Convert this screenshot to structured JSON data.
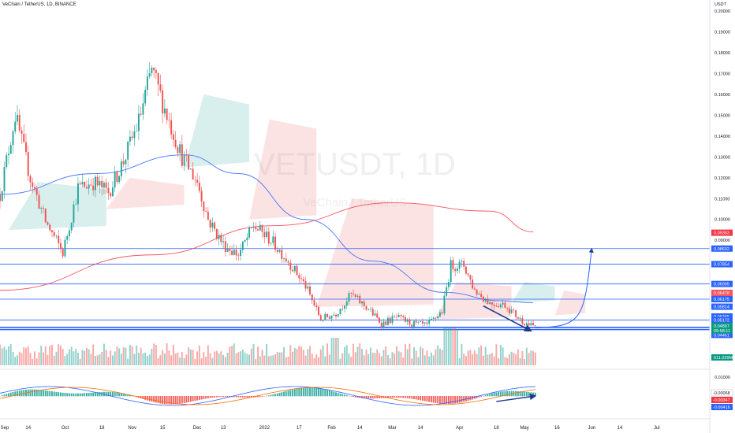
{
  "header": {
    "symbol_line": "VeChain / TetherUS, 1D, BINANCE"
  },
  "watermark": {
    "ticker": "VETUSDT, 1D",
    "name": "VeChain / TetherUS"
  },
  "price_axis": {
    "currency": "USDT",
    "labels": [
      "0.20000",
      "0.19000",
      "0.18000",
      "0.17000",
      "0.16000",
      "0.15000",
      "0.14000",
      "0.13000",
      "0.12000",
      "0.11000",
      "0.10000",
      "0.09000"
    ]
  },
  "price_tags": [
    {
      "text": "0.09363",
      "color": "#f23645"
    },
    {
      "text": "0.08602",
      "color": "#2962ff"
    },
    {
      "text": "0.07854",
      "color": "#2962ff"
    },
    {
      "text": "0.06905",
      "color": "#2962ff"
    },
    {
      "text": "0.06478",
      "color": "#f7525f"
    },
    {
      "text": "0.06175",
      "color": "#2962ff"
    },
    {
      "text": "0.05814",
      "color": "#2962ff"
    },
    {
      "text": "0.05345",
      "color": "#2962ff"
    },
    {
      "text": "0.05172",
      "color": "#2962ff"
    },
    {
      "text": "0.04822",
      "color": "#2962ff"
    },
    {
      "text": "0.04716",
      "color": "#2962ff"
    },
    {
      "text": "0.04461",
      "color": "#2962ff"
    }
  ],
  "last_price_tag": {
    "price": "0.04897",
    "countdown": "09:58:11",
    "color": "#089981"
  },
  "volume_tag": {
    "text": "611.029M",
    "color": "#089981"
  },
  "macd_axis": {
    "labels": [
      "0.01000"
    ]
  },
  "macd_tags": [
    {
      "text": "-0.00068",
      "color": "#ffffff"
    },
    {
      "text": "-0.00347",
      "color": "#f23645"
    },
    {
      "text": "-0.00416",
      "color": "#2962ff"
    }
  ],
  "time_axis": {
    "labels": [
      "Sep",
      "14",
      "Oct",
      "18",
      "Nov",
      "15",
      "Dec",
      "13",
      "2022",
      "17",
      "Feb",
      "14",
      "Mar",
      "14",
      "Apr",
      "18",
      "May",
      "16",
      "Jun",
      "14",
      "Jul"
    ]
  },
  "colors": {
    "up": "#26a69a",
    "down": "#ef5350",
    "ma_blue": "#2962ff",
    "ma_red": "#f23645",
    "hline": "#2962ff",
    "annot": "#1e3a8a"
  },
  "chart_data": {
    "type": "candlestick",
    "title": "VeChain / TetherUS, 1D, BINANCE",
    "x_range": [
      "2021-09-01",
      "2022-07-20"
    ],
    "ylim": [
      0.044,
      0.2
    ],
    "price_path": [
      {
        "date": "2021-09-01",
        "close": 0.112
      },
      {
        "date": "2021-09-08",
        "close": 0.15
      },
      {
        "date": "2021-09-15",
        "close": 0.12
      },
      {
        "date": "2021-09-22",
        "close": 0.099
      },
      {
        "date": "2021-09-30",
        "close": 0.084
      },
      {
        "date": "2021-10-07",
        "close": 0.115
      },
      {
        "date": "2021-10-14",
        "close": 0.118
      },
      {
        "date": "2021-10-21",
        "close": 0.113
      },
      {
        "date": "2021-10-28",
        "close": 0.128
      },
      {
        "date": "2021-11-04",
        "close": 0.147
      },
      {
        "date": "2021-11-10",
        "close": 0.172
      },
      {
        "date": "2021-11-17",
        "close": 0.15
      },
      {
        "date": "2021-11-24",
        "close": 0.13
      },
      {
        "date": "2021-12-01",
        "close": 0.118
      },
      {
        "date": "2021-12-06",
        "close": 0.1
      },
      {
        "date": "2021-12-13",
        "close": 0.088
      },
      {
        "date": "2021-12-20",
        "close": 0.083
      },
      {
        "date": "2021-12-27",
        "close": 0.097
      },
      {
        "date": "2022-01-04",
        "close": 0.09
      },
      {
        "date": "2022-01-12",
        "close": 0.08
      },
      {
        "date": "2022-01-20",
        "close": 0.068
      },
      {
        "date": "2022-01-27",
        "close": 0.052
      },
      {
        "date": "2022-02-03",
        "close": 0.055
      },
      {
        "date": "2022-02-10",
        "close": 0.064
      },
      {
        "date": "2022-02-18",
        "close": 0.057
      },
      {
        "date": "2022-02-24",
        "close": 0.05
      },
      {
        "date": "2022-03-03",
        "close": 0.053
      },
      {
        "date": "2022-03-10",
        "close": 0.05
      },
      {
        "date": "2022-03-17",
        "close": 0.049
      },
      {
        "date": "2022-03-24",
        "close": 0.056
      },
      {
        "date": "2022-03-28",
        "close": 0.078
      },
      {
        "date": "2022-04-03",
        "close": 0.078
      },
      {
        "date": "2022-04-08",
        "close": 0.066
      },
      {
        "date": "2022-04-15",
        "close": 0.06
      },
      {
        "date": "2022-04-22",
        "close": 0.059
      },
      {
        "date": "2022-04-29",
        "close": 0.052
      },
      {
        "date": "2022-05-04",
        "close": 0.049
      }
    ],
    "series": [
      {
        "name": "MA (blue)",
        "values": [
          [
            0.112,
            "2021-09-01"
          ],
          [
            0.122,
            "2021-10-15"
          ],
          [
            0.131,
            "2021-11-25"
          ],
          [
            0.122,
            "2021-12-20"
          ],
          [
            0.1,
            "2022-01-20"
          ],
          [
            0.08,
            "2022-02-20"
          ],
          [
            0.065,
            "2022-03-25"
          ],
          [
            0.061,
            "2022-04-20"
          ],
          [
            0.06,
            "2022-05-05"
          ]
        ]
      },
      {
        "name": "MA (red)",
        "values": [
          [
            0.066,
            "2021-09-01"
          ],
          [
            0.083,
            "2021-11-10"
          ],
          [
            0.097,
            "2022-01-05"
          ],
          [
            0.108,
            "2022-03-01"
          ],
          [
            0.104,
            "2022-04-15"
          ],
          [
            0.094,
            "2022-05-05"
          ]
        ]
      }
    ],
    "horizontal_levels": [
      0.08602,
      0.07854,
      0.06905,
      0.06175,
      0.05172,
      0.04822,
      0.04716
    ],
    "forecast_curve": {
      "from": [
        "2022-05-06",
        0.048
      ],
      "to": [
        "2022-06-01",
        0.086
      ]
    }
  }
}
